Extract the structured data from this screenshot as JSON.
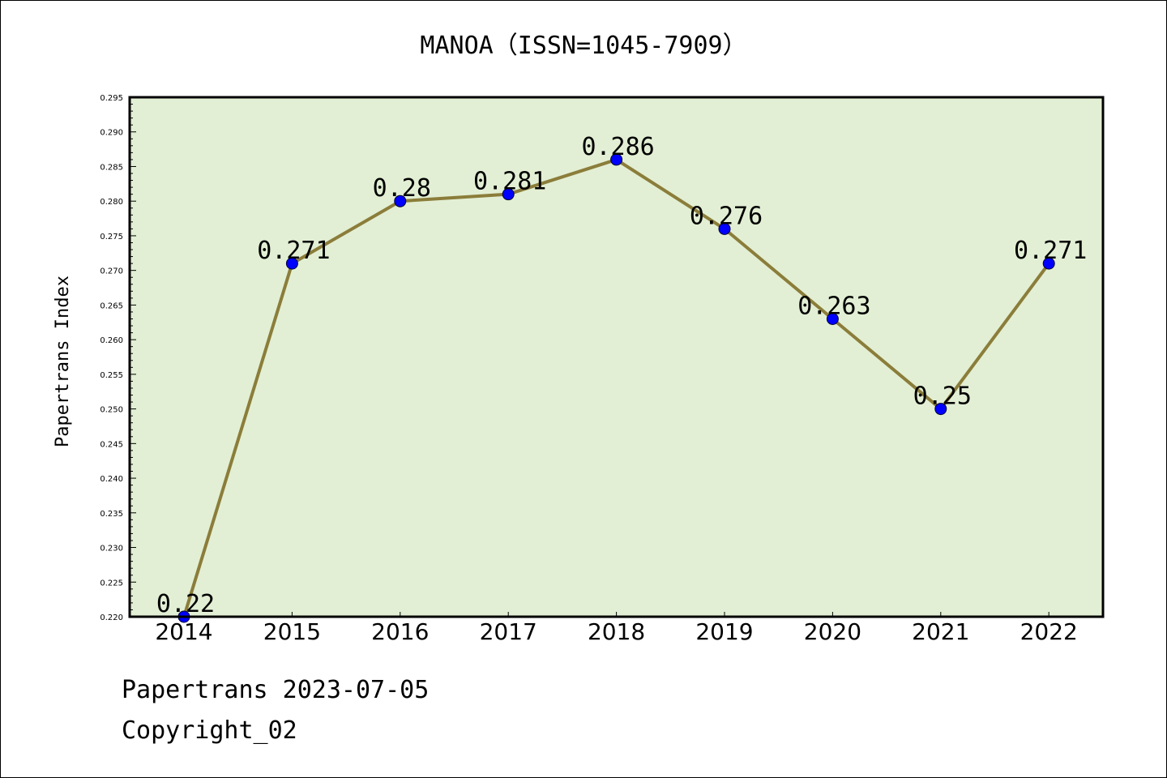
{
  "chart_data": {
    "type": "line",
    "title": "MANOA（ISSN=1045-7909）",
    "ylabel": "Papertrans Index",
    "xlabel": "",
    "categories": [
      "2014",
      "2015",
      "2016",
      "2017",
      "2018",
      "2019",
      "2020",
      "2021",
      "2022"
    ],
    "values": [
      0.22,
      0.271,
      0.28,
      0.281,
      0.286,
      0.276,
      0.263,
      0.25,
      0.271
    ],
    "data_labels": [
      "0.22",
      "0.271",
      "0.28",
      "0.281",
      "0.286",
      "0.276",
      "0.263",
      "0.25",
      "0.271"
    ],
    "ylim": [
      0.22,
      0.295
    ],
    "yticks": [
      "0.220",
      "0.225",
      "0.230",
      "0.235",
      "0.240",
      "0.245",
      "0.250",
      "0.255",
      "0.260",
      "0.265",
      "0.270",
      "0.275",
      "0.280",
      "0.285",
      "0.290",
      "0.295"
    ],
    "grid": false,
    "legend": "none",
    "colors": {
      "plot_background": "#e2efd4",
      "line": "#8b7d3a",
      "marker": "#0000ff"
    }
  },
  "footer": {
    "line1": "Papertrans 2023-07-05",
    "line2": "Copyright_02"
  }
}
